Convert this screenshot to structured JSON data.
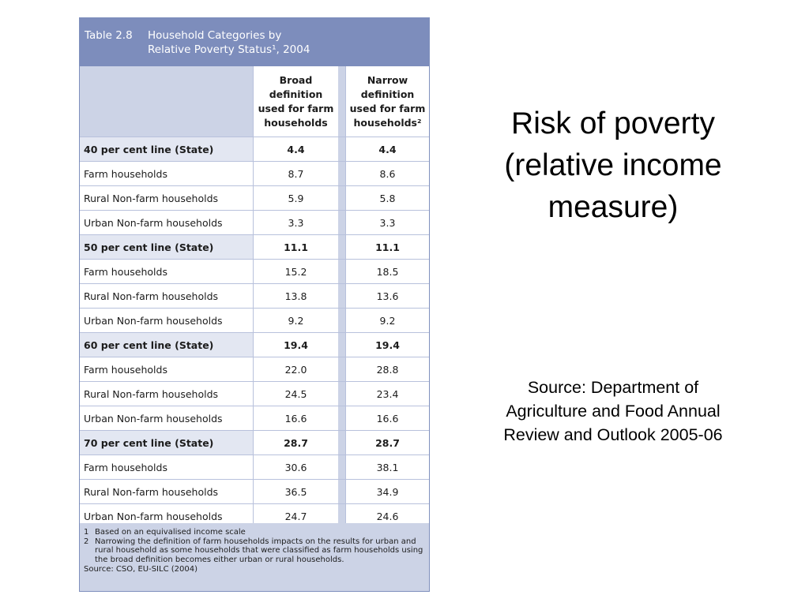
{
  "table": {
    "number": "Table 2.8",
    "title_line1": "Household Categories by",
    "title_line2": "Relative Poverty Status¹, 2004",
    "col2_header": [
      "Broad",
      "definition",
      "used for farm",
      "households"
    ],
    "col3_header": [
      "Narrow",
      "definition",
      "used for farm",
      "households²"
    ],
    "rows": [
      {
        "label": "40 per cent line (State)",
        "broad": "4.4",
        "narrow": "4.4",
        "bold": true
      },
      {
        "label": "Farm households",
        "broad": "8.7",
        "narrow": "8.6",
        "bold": false
      },
      {
        "label": "Rural Non-farm households",
        "broad": "5.9",
        "narrow": "5.8",
        "bold": false
      },
      {
        "label": "Urban Non-farm households",
        "broad": "3.3",
        "narrow": "3.3",
        "bold": false
      },
      {
        "label": "50 per cent line (State)",
        "broad": "11.1",
        "narrow": "11.1",
        "bold": true
      },
      {
        "label": "Farm households",
        "broad": "15.2",
        "narrow": "18.5",
        "bold": false
      },
      {
        "label": "Rural Non-farm households",
        "broad": "13.8",
        "narrow": "13.6",
        "bold": false
      },
      {
        "label": "Urban Non-farm households",
        "broad": "9.2",
        "narrow": "9.2",
        "bold": false
      },
      {
        "label": "60 per cent line (State)",
        "broad": "19.4",
        "narrow": "19.4",
        "bold": true
      },
      {
        "label": "Farm households",
        "broad": "22.0",
        "narrow": "28.8",
        "bold": false
      },
      {
        "label": "Rural Non-farm households",
        "broad": "24.5",
        "narrow": "23.4",
        "bold": false
      },
      {
        "label": "Urban Non-farm households",
        "broad": "16.6",
        "narrow": "16.6",
        "bold": false
      },
      {
        "label": "70 per cent line (State)",
        "broad": "28.7",
        "narrow": "28.7",
        "bold": true
      },
      {
        "label": "Farm households",
        "broad": "30.6",
        "narrow": "38.1",
        "bold": false
      },
      {
        "label": "Rural Non-farm households",
        "broad": "36.5",
        "narrow": "34.9",
        "bold": false
      },
      {
        "label": "Urban Non-farm households",
        "broad": "24.7",
        "narrow": "24.6",
        "bold": false
      }
    ],
    "footnotes": [
      {
        "num": "1",
        "text": "Based on an equivalised income scale"
      },
      {
        "num": "2",
        "text": "Narrowing the definition of farm households impacts on the results for urban and rural household as some households that were classified as farm households using the broad definition becomes either urban or rural households."
      }
    ],
    "source": "Source: CSO, EU-SILC (2004)"
  },
  "slide": {
    "title_lines": [
      "Risk of poverty",
      "(relative income",
      "measure)"
    ],
    "source_lines": [
      "Source:  Department of",
      "Agriculture and Food Annual",
      "Review and Outlook 2005-06"
    ]
  },
  "colors": {
    "header_bg": "#7d8dbc",
    "light_band": "#ccd3e6",
    "border": "#b8c1dc"
  }
}
